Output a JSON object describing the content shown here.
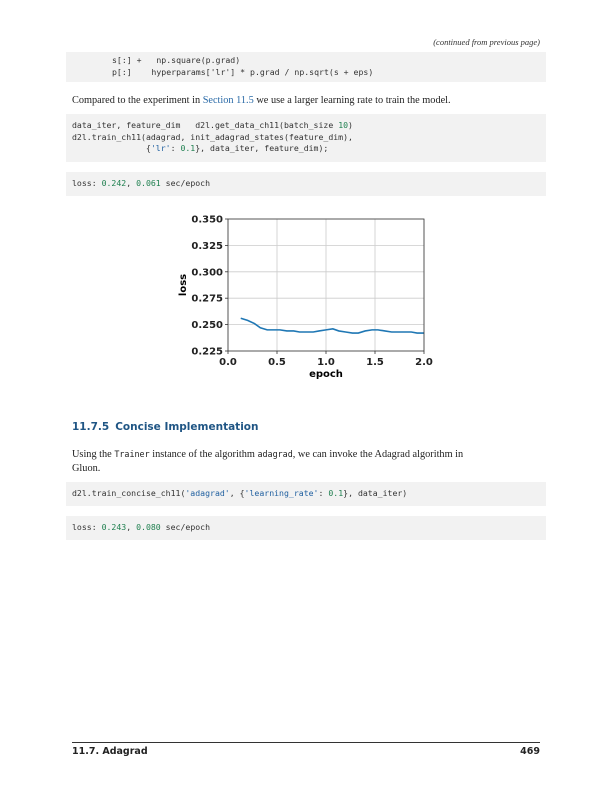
{
  "header": {
    "continued": "(continued from previous page)"
  },
  "code_top": {
    "line1": "s[:] +   np.square(p.grad)",
    "line2": "p[:]    hyperparams['lr'] * p.grad / np.sqrt(s + eps)"
  },
  "para1": {
    "before": "Compared to the experiment in ",
    "link": "Section 11.5",
    "after": " we use a larger learning rate to train the model."
  },
  "code_train": {
    "l1a": "data_iter, feature_dim   d2l.get_data_ch11(batch_size ",
    "l1num": "10",
    "l1b": ")",
    "l2": "d2l.train_ch11(adagrad, init_adagrad_states(feature_dim),",
    "l3a": "               {",
    "l3str": "'lr'",
    "l3b": ": ",
    "l3num": "0.1",
    "l3c": "}, data_iter, feature_dim);"
  },
  "output1": {
    "label": "loss: ",
    "loss": "0.242",
    "sep": ", ",
    "time": "0.061",
    "unit": " sec/epoch"
  },
  "chart_data": {
    "type": "line",
    "xlabel": "epoch",
    "ylabel": "loss",
    "xlim": [
      0.0,
      2.0
    ],
    "ylim": [
      0.225,
      0.35
    ],
    "xticks": [
      "0.0",
      "0.5",
      "1.0",
      "1.5",
      "2.0"
    ],
    "yticks": [
      "0.225",
      "0.250",
      "0.275",
      "0.300",
      "0.325",
      "0.350"
    ],
    "xtick_values": [
      0.0,
      0.5,
      1.0,
      1.5,
      2.0
    ],
    "ytick_values": [
      0.225,
      0.25,
      0.275,
      0.3,
      0.325,
      0.35
    ],
    "grid": true,
    "color": "#1f77b4",
    "series": [
      {
        "x": [
          0.13,
          0.2,
          0.27,
          0.33,
          0.4,
          0.47,
          0.53,
          0.6,
          0.67,
          0.73,
          0.8,
          0.87,
          0.93,
          1.0,
          1.07,
          1.13,
          1.2,
          1.27,
          1.33,
          1.4,
          1.47,
          1.53,
          1.6,
          1.67,
          1.73,
          1.8,
          1.87,
          1.93,
          2.0
        ],
        "y": [
          0.256,
          0.254,
          0.251,
          0.247,
          0.245,
          0.245,
          0.245,
          0.244,
          0.244,
          0.243,
          0.243,
          0.243,
          0.244,
          0.245,
          0.246,
          0.244,
          0.243,
          0.242,
          0.242,
          0.244,
          0.245,
          0.245,
          0.244,
          0.243,
          0.243,
          0.243,
          0.243,
          0.242,
          0.242
        ]
      }
    ]
  },
  "section": {
    "number": "11.7.5",
    "title": "Concise Implementation"
  },
  "para2": {
    "t1": "Using the ",
    "m1": "Trainer",
    "t2": " instance of the algorithm ",
    "m2": "adagrad",
    "t3": ", we can invoke the Adagrad algorithm in",
    "t4": "Gluon."
  },
  "code_concise": {
    "a": "d2l.train_concise_ch11(",
    "s1": "'adagrad'",
    "b": ", {",
    "s2": "'learning_rate'",
    "c": ": ",
    "n": "0.1",
    "d": "}, data_iter)"
  },
  "output2": {
    "label": "loss: ",
    "loss": "0.243",
    "sep": ", ",
    "time": "0.080",
    "unit": " sec/epoch"
  },
  "footer": {
    "section": "11.7. Adagrad",
    "page": "469"
  }
}
